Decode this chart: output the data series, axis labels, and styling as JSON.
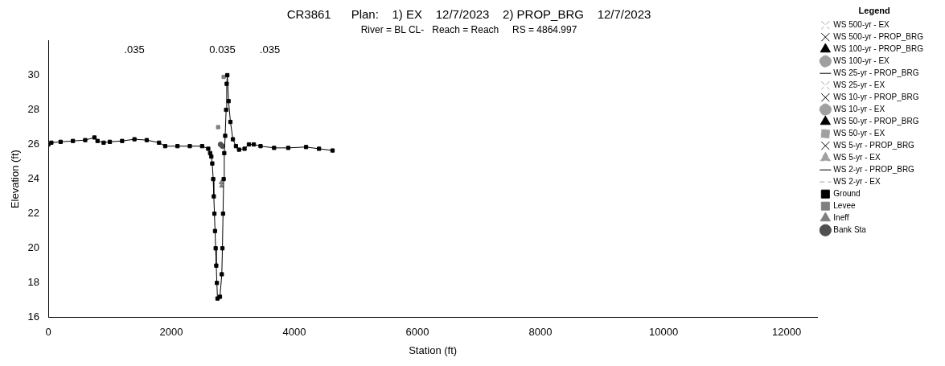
{
  "chart_data": {
    "type": "line",
    "title": "CR3861      Plan:    1) EX    12/7/2023    2) PROP_BRG    12/7/2023",
    "subtitle": "River = BL CL-   Reach = Reach     RS = 4864.997",
    "xlabel": "Station (ft)",
    "ylabel": "Elevation (ft)",
    "legend_title": "Legend",
    "legend": "right",
    "xlim": [
      0,
      12500
    ],
    "xticks": [
      0,
      2000,
      4000,
      6000,
      8000,
      10000,
      12000
    ],
    "ylim": [
      16,
      32
    ],
    "yticks": [
      16,
      18,
      20,
      22,
      24,
      26,
      28,
      30
    ],
    "grid": false,
    "annotations": [
      {
        "text": ".035",
        "x": 1400,
        "y": 31.5
      },
      {
        "text": ".035",
        "x": 3600,
        "y": 31.5
      },
      {
        "text": "0.035",
        "x": 2830,
        "y": 31.5
      }
    ],
    "series": [
      {
        "name": "WS 500-yr - EX",
        "color": "#a0a0a0",
        "line_style": "dashed",
        "marker": "cross"
      },
      {
        "name": "WS 500-yr - PROP_BRG",
        "color": "#000000",
        "line_style": "solid",
        "marker": "cross"
      },
      {
        "name": "WS 100-yr - PROP_BRG",
        "color": "#000000",
        "line_style": "solid",
        "marker": "triangle"
      },
      {
        "name": "WS 100-yr - EX",
        "color": "#a0a0a0",
        "line_style": "dashed",
        "marker": "circle"
      },
      {
        "name": "WS 25-yr - PROP_BRG",
        "color": "#000000",
        "line_style": "solid",
        "marker": "none"
      },
      {
        "name": "WS 25-yr - EX",
        "color": "#a0a0a0",
        "line_style": "dashed",
        "marker": "cross"
      },
      {
        "name": "WS 10-yr - PROP_BRG",
        "color": "#000000",
        "line_style": "solid",
        "marker": "cross"
      },
      {
        "name": "WS 10-yr - EX",
        "color": "#a0a0a0",
        "line_style": "dashed",
        "marker": "circle"
      },
      {
        "name": "WS 50-yr - PROP_BRG",
        "color": "#000000",
        "line_style": "solid",
        "marker": "triangle"
      },
      {
        "name": "WS 50-yr - EX",
        "color": "#a0a0a0",
        "line_style": "dashed",
        "marker": "square"
      },
      {
        "name": "WS 5-yr - PROP_BRG",
        "color": "#000000",
        "line_style": "solid",
        "marker": "cross"
      },
      {
        "name": "WS 5-yr - EX",
        "color": "#a0a0a0",
        "line_style": "dashed",
        "marker": "triangle"
      },
      {
        "name": "WS 2-yr - PROP_BRG",
        "color": "#000000",
        "line_style": "solid",
        "marker": "none"
      },
      {
        "name": "WS 2-yr - EX",
        "color": "#a0a0a0",
        "line_style": "dashed",
        "marker": "none"
      },
      {
        "name": "Ground",
        "color": "#000000",
        "line_style": "solid",
        "marker": "square",
        "x": [
          0,
          50,
          200,
          400,
          600,
          750,
          800,
          900,
          1000,
          1200,
          1400,
          1600,
          1800,
          1900,
          2100,
          2300,
          2500,
          2600,
          2630,
          2650,
          2665,
          2680,
          2690,
          2700,
          2710,
          2720,
          2730,
          2740,
          2750,
          2790,
          2820,
          2830,
          2840,
          2850,
          2860,
          2875,
          2890,
          2900,
          2910,
          2930,
          2960,
          3000,
          3050,
          3100,
          3190,
          3260,
          3340,
          3450,
          3670,
          3900,
          4190,
          4400,
          4620
        ],
        "values": [
          26.0,
          26.1,
          26.15,
          26.2,
          26.25,
          26.4,
          26.2,
          26.1,
          26.15,
          26.2,
          26.3,
          26.25,
          26.1,
          25.9,
          25.9,
          25.9,
          25.9,
          25.75,
          25.5,
          25.3,
          24.9,
          24.0,
          23.0,
          22.0,
          21.0,
          20.0,
          19.0,
          18.0,
          17.1,
          17.2,
          18.5,
          20.0,
          22.0,
          24.0,
          25.5,
          26.5,
          28.0,
          29.5,
          30.0,
          28.5,
          27.3,
          26.3,
          25.9,
          25.7,
          25.75,
          26.0,
          26.0,
          25.9,
          25.8,
          25.8,
          25.85,
          25.75,
          25.65
        ]
      },
      {
        "name": "Levee",
        "type": "scatter",
        "color": "#808080",
        "marker": "square",
        "x": [
          2760,
          2850
        ],
        "values": [
          27.0,
          29.9
        ]
      },
      {
        "name": "Ineff",
        "type": "scatter",
        "color": "#808080",
        "marker": "triangle",
        "x": [
          2810,
          2815
        ],
        "values": [
          23.8,
          23.6
        ]
      },
      {
        "name": "Bank Sta",
        "type": "scatter",
        "color": "#505050",
        "marker": "circle",
        "x": [
          2800,
          2830
        ],
        "values": [
          26.0,
          25.9
        ]
      }
    ]
  }
}
